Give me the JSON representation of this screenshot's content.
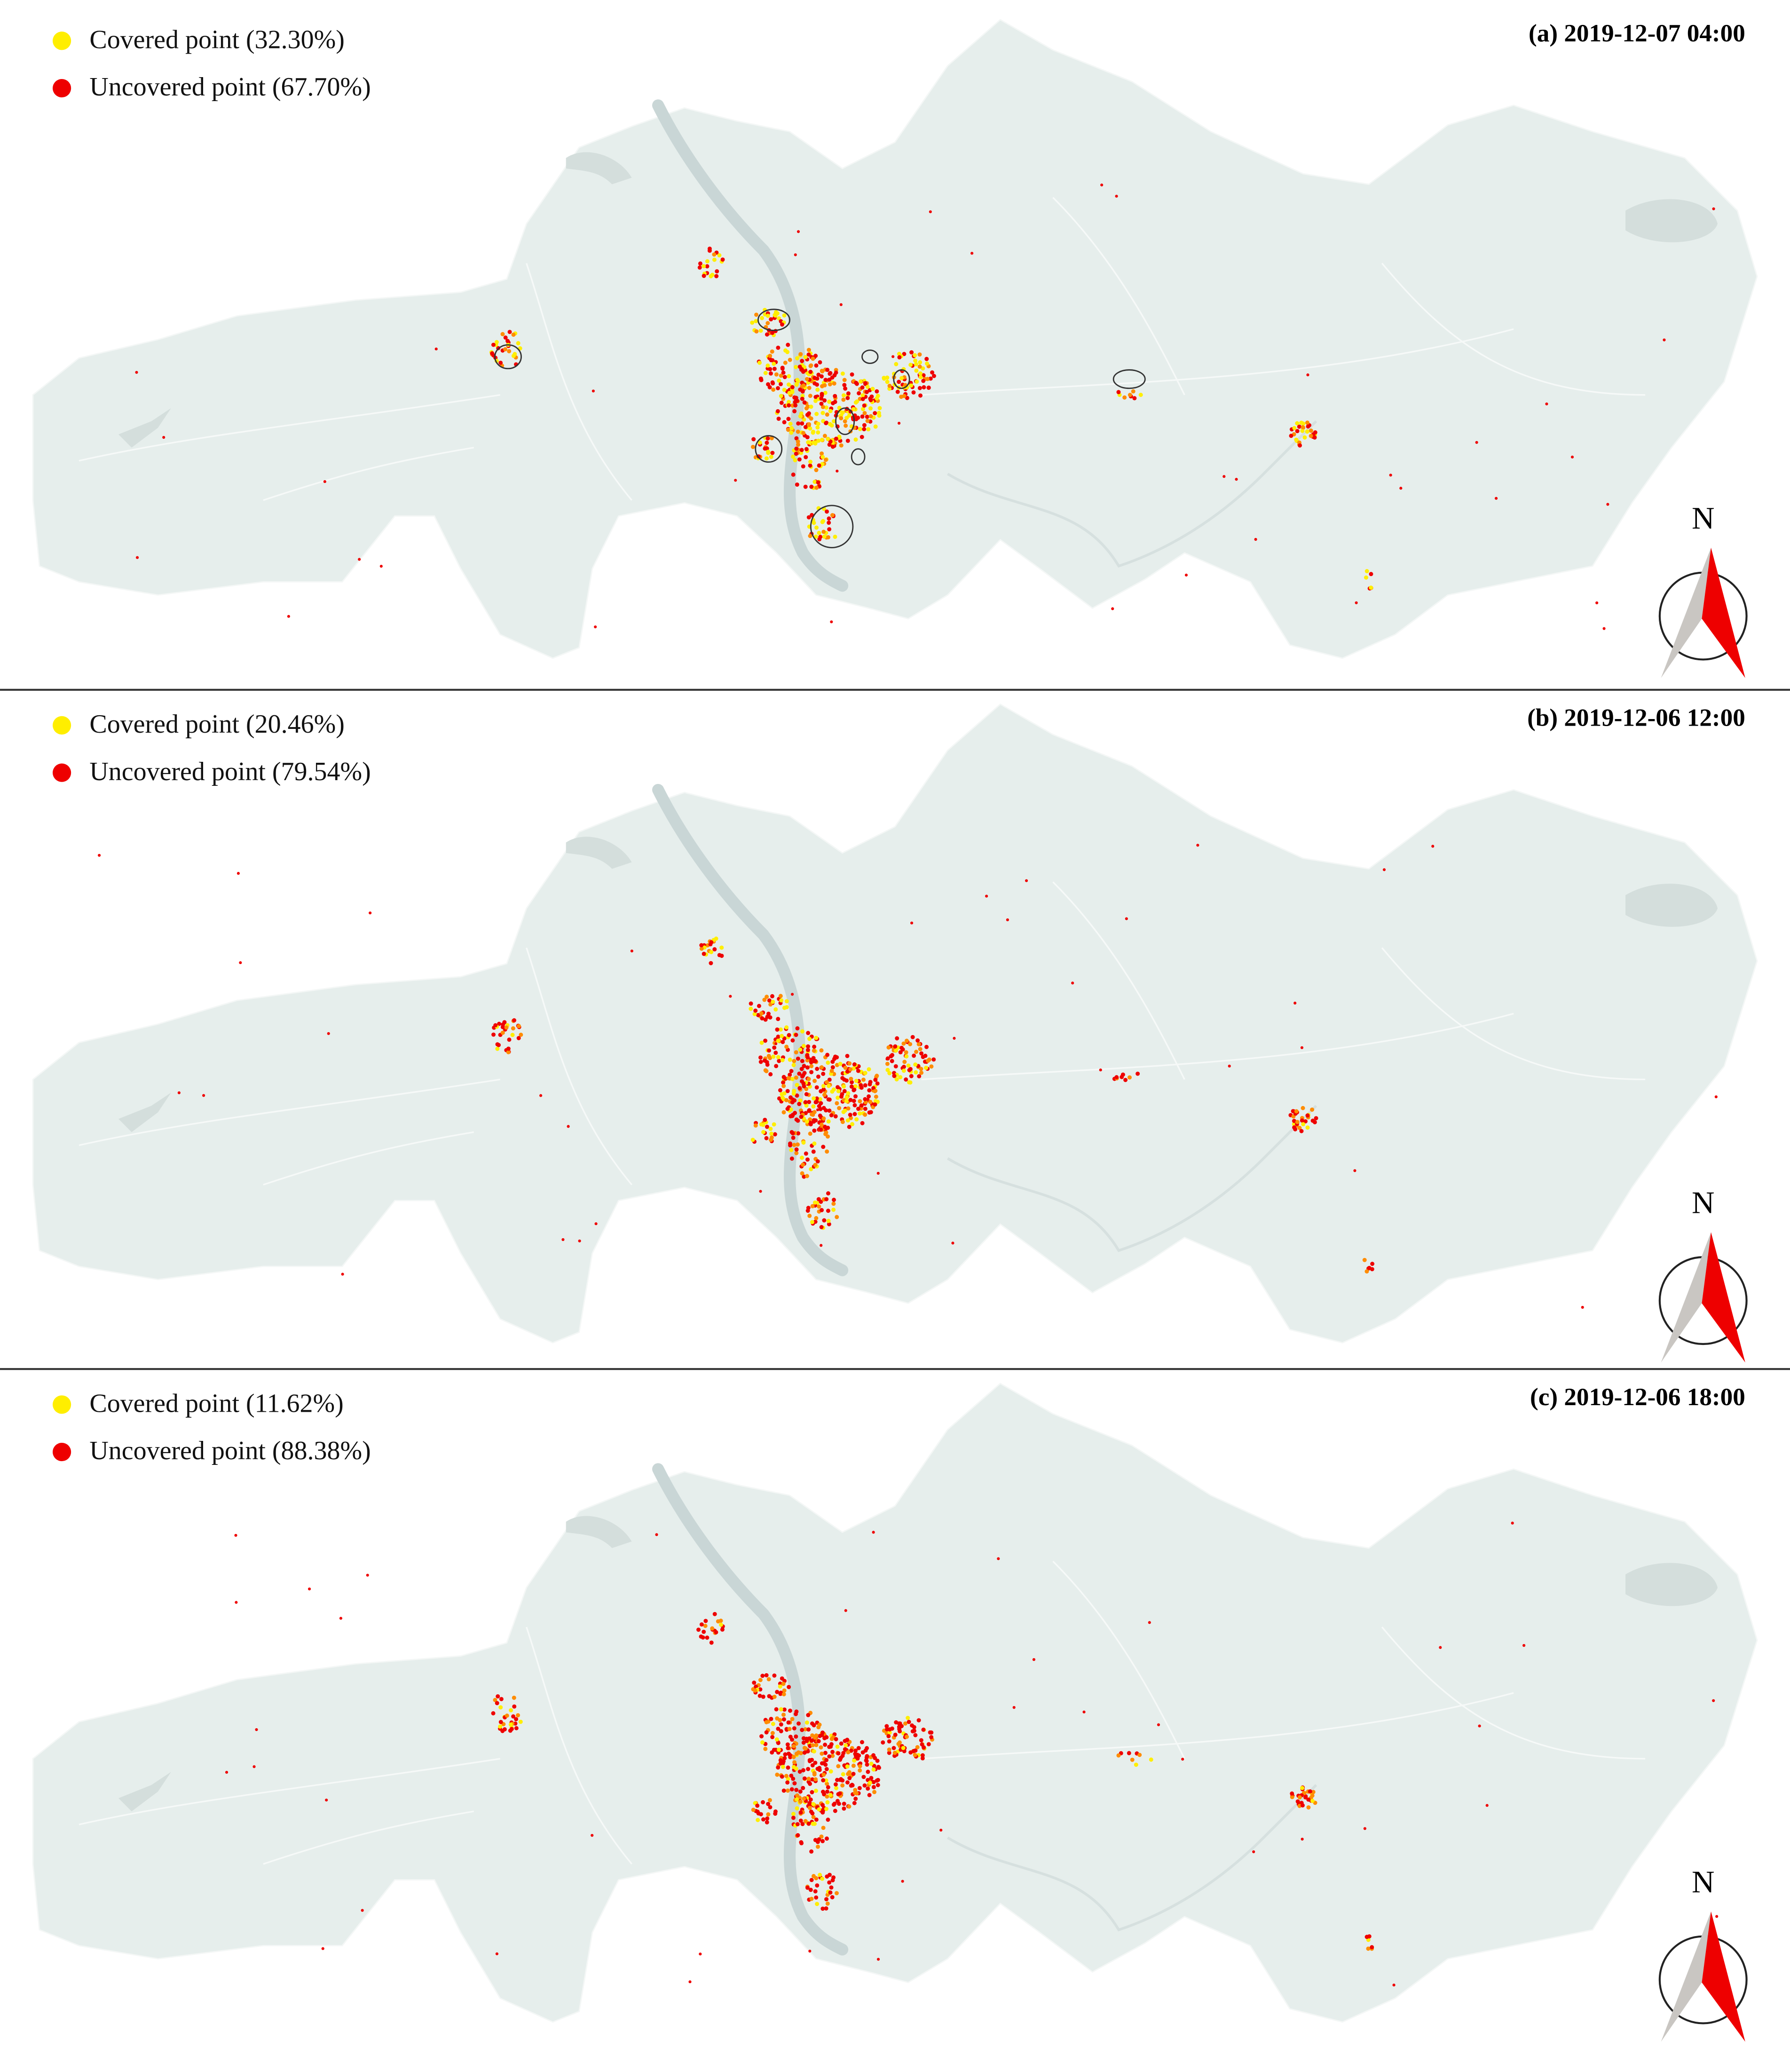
{
  "panels": [
    {
      "title": "(a) 2019-12-07 04:00",
      "legend": [
        "Covered point (32.30%)",
        "Uncovered point (67.70%)"
      ],
      "north": "N"
    },
    {
      "title": "(b) 2019-12-06 12:00",
      "legend": [
        "Covered point (20.46%)",
        "Uncovered point (79.54%)"
      ],
      "north": "N"
    },
    {
      "title": "(c) 2019-12-06 18:00",
      "legend": [
        "Covered point (11.62%)",
        "Uncovered point (88.38%)"
      ],
      "north": "N"
    }
  ]
}
